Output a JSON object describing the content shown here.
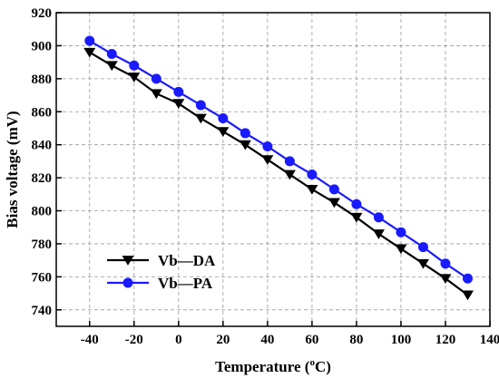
{
  "chart_data": {
    "type": "line",
    "xlabel_main": "Temperature (",
    "xlabel_sup": "o",
    "xlabel_unit": "C)",
    "ylabel": "Bias voltage (mV)",
    "xlim": [
      -55,
      140
    ],
    "ylim": [
      730,
      920
    ],
    "xticks": [
      -40,
      -20,
      0,
      20,
      40,
      60,
      80,
      100,
      120,
      140
    ],
    "yticks": [
      740,
      760,
      780,
      800,
      820,
      840,
      860,
      880,
      900,
      920
    ],
    "grid": true,
    "legend_position": "bottom-left",
    "x": [
      -40,
      -30,
      -20,
      -10,
      0,
      10,
      20,
      30,
      40,
      50,
      60,
      70,
      80,
      90,
      100,
      110,
      120,
      130
    ],
    "series": [
      {
        "name": "Vb—DA",
        "marker": "triangle-down",
        "color": "#000000",
        "values": [
          896,
          888,
          881,
          871,
          865,
          856,
          848,
          840,
          831,
          822,
          813,
          805,
          796,
          786,
          777,
          768,
          759,
          749
        ]
      },
      {
        "name": "Vb—PA",
        "marker": "circle",
        "color": "#1a1aff",
        "values": [
          903,
          895,
          888,
          880,
          872,
          864,
          856,
          847,
          839,
          830,
          822,
          813,
          804,
          796,
          787,
          778,
          768,
          759
        ]
      }
    ]
  }
}
